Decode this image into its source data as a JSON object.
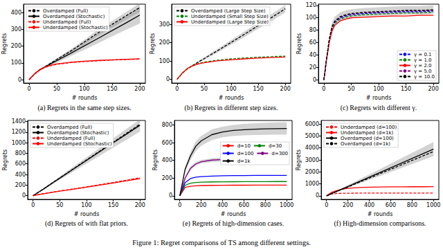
{
  "caption": "Figure 1: Regret comparisons of TS among different settings.",
  "chart_data": [
    {
      "type": "line",
      "title": "(a) Regrets in the same step sizes.",
      "xlabel": "# rounds",
      "ylabel": "Regrets",
      "grid": false,
      "legend": "upper left",
      "xlim": [
        -10,
        210
      ],
      "xticks": [
        0,
        50,
        100,
        150,
        200
      ],
      "ylim": [
        -20,
        450
      ],
      "yticks": [
        0,
        100,
        200,
        300,
        400
      ],
      "x": [
        0,
        10,
        20,
        30,
        40,
        50,
        75,
        100,
        125,
        150,
        175,
        200
      ],
      "series": [
        {
          "name": "Overdamped (Full)",
          "color": "#000000",
          "line_style": "dashed",
          "values": [
            0,
            35,
            60,
            80,
            100,
            120,
            170,
            225,
            280,
            330,
            380,
            430
          ],
          "lower": [
            0,
            33,
            57,
            76,
            95,
            113,
            160,
            211,
            262,
            310,
            357,
            404
          ],
          "upper": [
            0,
            37,
            63,
            84,
            105,
            127,
            180,
            239,
            298,
            350,
            403,
            456
          ]
        },
        {
          "name": "Overdamped (Stochastic)",
          "color": "#000000",
          "line_style": "solid",
          "values": [
            0,
            35,
            60,
            78,
            96,
            113,
            157,
            202,
            247,
            293,
            338,
            385
          ],
          "lower": [
            0,
            32,
            55,
            71,
            87,
            101,
            140,
            179,
            218,
            258,
            297,
            335
          ],
          "upper": [
            0,
            38,
            65,
            85,
            105,
            125,
            174,
            225,
            276,
            328,
            379,
            435
          ]
        },
        {
          "name": "Underdamped (Full)",
          "color": "#ff0000",
          "line_style": "dashed",
          "values": [
            0,
            35,
            60,
            75,
            85,
            92,
            102,
            108,
            113,
            117,
            120,
            123
          ]
        },
        {
          "name": "Underdamped (Stochastic)",
          "color": "#ff0000",
          "line_style": "solid",
          "values": [
            0,
            36,
            62,
            77,
            87,
            94,
            104,
            110,
            115,
            119,
            122,
            125
          ]
        }
      ]
    },
    {
      "type": "line",
      "title": "(b) Regrets in different step sizes.",
      "xlabel": "# rounds",
      "ylabel": "Regrets",
      "grid": false,
      "legend": "upper left",
      "xlim": [
        -10,
        210
      ],
      "xticks": [
        0,
        50,
        100,
        150,
        200
      ],
      "ylim": [
        -20,
        410
      ],
      "yticks": [
        0,
        100,
        200,
        300
      ],
      "x": [
        0,
        10,
        20,
        30,
        40,
        50,
        75,
        100,
        125,
        150,
        175,
        200
      ],
      "series": [
        {
          "name": "Overdamped (Large Step Size)",
          "color": "#000000",
          "line_style": "dashed",
          "values": [
            0,
            35,
            60,
            78,
            96,
            113,
            157,
            202,
            247,
            293,
            338,
            385
          ],
          "lower": [
            0,
            32,
            56,
            73,
            90,
            106,
            147,
            189,
            232,
            276,
            319,
            365
          ],
          "upper": [
            0,
            38,
            64,
            83,
            102,
            120,
            167,
            215,
            262,
            310,
            357,
            405
          ]
        },
        {
          "name": "Underdamped (Small Step Size)",
          "color": "#008000",
          "line_style": "dashed",
          "values": [
            0,
            35,
            60,
            75,
            86,
            94,
            105,
            112,
            117,
            121,
            124,
            127
          ]
        },
        {
          "name": "Underdamped (Large Step Size)",
          "color": "#ff0000",
          "line_style": "solid",
          "values": [
            0,
            36,
            62,
            76,
            85,
            91,
            101,
            107,
            112,
            116,
            119,
            122
          ]
        }
      ]
    },
    {
      "type": "line",
      "title": "(c) Regrets with different γ.",
      "xlabel": "# rounds",
      "ylabel": "Regrets",
      "grid": false,
      "legend": "lower right",
      "xlim": [
        -10,
        210
      ],
      "xticks": [
        0,
        50,
        100,
        150,
        200
      ],
      "ylim": [
        -5,
        122
      ],
      "yticks": [
        0,
        20,
        40,
        60,
        80,
        100,
        120
      ],
      "x": [
        0,
        5,
        10,
        15,
        20,
        30,
        40,
        50,
        75,
        100,
        125,
        150,
        175,
        200
      ],
      "series": [
        {
          "name": "γ = 0.1",
          "color": "#0000ff",
          "line_style": "dashed",
          "values": [
            0,
            35,
            65,
            84,
            93,
            100,
            103,
            105,
            107,
            108,
            109,
            110,
            110,
            111
          ]
        },
        {
          "name": "γ = 1.0",
          "color": "#008000",
          "line_style": "dashed",
          "values": [
            0,
            34,
            63,
            82,
            91,
            98,
            101,
            103,
            105,
            106,
            107,
            108,
            108,
            109
          ]
        },
        {
          "name": "γ = 2.0",
          "color": "#ff0000",
          "line_style": "solid",
          "values": [
            0,
            33,
            61,
            79,
            88,
            95,
            98,
            100,
            101,
            102,
            103,
            103,
            104,
            104
          ]
        },
        {
          "name": "γ = 5.0",
          "color": "#800080",
          "line_style": "dashed",
          "values": [
            0,
            35,
            66,
            85,
            94,
            101,
            104,
            106,
            108,
            109,
            110,
            111,
            111,
            112
          ]
        },
        {
          "name": "γ = 10.0",
          "color": "#000000",
          "line_style": "dashed",
          "values": [
            0,
            35,
            66,
            86,
            95,
            102,
            105,
            107,
            109,
            110,
            111,
            112,
            112,
            113
          ],
          "lower": [
            0,
            31,
            60,
            79,
            88,
            95,
            98,
            100,
            102,
            103,
            104,
            105,
            105,
            106
          ],
          "upper": [
            0,
            39,
            72,
            93,
            102,
            109,
            112,
            114,
            116,
            117,
            118,
            119,
            119,
            120
          ]
        }
      ]
    },
    {
      "type": "line",
      "title": "(d) Regrets of with flat priors.",
      "xlabel": "# rounds",
      "ylabel": "Regrets",
      "grid": false,
      "legend": "upper left",
      "xlim": [
        -10,
        210
      ],
      "xticks": [
        0,
        50,
        100,
        150,
        200
      ],
      "ylim": [
        -70,
        1420
      ],
      "yticks": [
        0,
        200,
        400,
        600,
        800,
        1000,
        1200,
        1400
      ],
      "x": [
        0,
        10,
        20,
        30,
        40,
        50,
        75,
        100,
        125,
        150,
        175,
        200
      ],
      "series": [
        {
          "name": "Overdamped (Full)",
          "color": "#000000",
          "line_style": "dashed",
          "values": [
            0,
            65,
            130,
            200,
            268,
            335,
            505,
            675,
            845,
            1010,
            1180,
            1350
          ]
        },
        {
          "name": "Overdamped (Stochastic)",
          "color": "#000000",
          "line_style": "solid",
          "values": [
            0,
            64,
            128,
            196,
            263,
            330,
            498,
            665,
            832,
            998,
            1163,
            1330
          ],
          "lower": [
            0,
            58,
            116,
            178,
            240,
            300,
            452,
            605,
            757,
            908,
            1058,
            1210
          ],
          "upper": [
            0,
            70,
            140,
            214,
            286,
            360,
            544,
            725,
            905,
            1085,
            1262,
            1440
          ]
        },
        {
          "name": "Underdamped (Full)",
          "color": "#ff0000",
          "line_style": "dashed",
          "values": [
            0,
            20,
            38,
            55,
            72,
            88,
            128,
            168,
            208,
            250,
            292,
            340
          ]
        },
        {
          "name": "Underdamped (Stochastic)",
          "color": "#ff0000",
          "line_style": "solid",
          "values": [
            0,
            19,
            36,
            52,
            68,
            84,
            122,
            160,
            200,
            240,
            280,
            322
          ]
        }
      ]
    },
    {
      "type": "line",
      "title": "(e) Regrets of high-dimension cases.",
      "xlabel": "# rounds",
      "ylabel": "Regrets",
      "grid": false,
      "legend": "right",
      "xlim": [
        -50,
        1050
      ],
      "xticks": [
        0,
        200,
        400,
        600,
        800,
        1000
      ],
      "ylim": [
        -40,
        850
      ],
      "yticks": [
        0,
        200,
        400,
        600,
        800
      ],
      "x": [
        0,
        50,
        100,
        150,
        200,
        300,
        400,
        500,
        600,
        700,
        800,
        900,
        1000
      ],
      "series": [
        {
          "name": "d=10",
          "color": "#ff0000",
          "line_style": "solid",
          "values": [
            0,
            95,
            108,
            113,
            116,
            118,
            119,
            120,
            120,
            121,
            121,
            121,
            121
          ]
        },
        {
          "name": "d=30",
          "color": "#008000",
          "line_style": "solid",
          "values": [
            0,
            120,
            142,
            150,
            154,
            157,
            158,
            159,
            160,
            160,
            160,
            161,
            161
          ]
        },
        {
          "name": "d=100",
          "color": "#0000ff",
          "line_style": "solid",
          "values": [
            0,
            150,
            195,
            210,
            217,
            223,
            226,
            228,
            229,
            230,
            230,
            231,
            231
          ]
        },
        {
          "name": "d=300",
          "color": "#800080",
          "line_style": "solid",
          "values": [
            0,
            200,
            310,
            360,
            385,
            403,
            410,
            414,
            416,
            418,
            419,
            420,
            420
          ],
          "lower": [
            0,
            188,
            290,
            340,
            365,
            381,
            388,
            393,
            395,
            398,
            399,
            400,
            400
          ],
          "upper": [
            0,
            212,
            330,
            380,
            405,
            425,
            432,
            435,
            437,
            438,
            439,
            440,
            440
          ]
        },
        {
          "name": "d=1k",
          "color": "#000000",
          "line_style": "solid",
          "values": [
            0,
            300,
            450,
            560,
            620,
            690,
            720,
            737,
            746,
            752,
            756,
            758,
            760
          ],
          "lower": [
            0,
            270,
            405,
            505,
            565,
            630,
            660,
            675,
            682,
            686,
            688,
            689,
            690
          ],
          "upper": [
            0,
            330,
            495,
            615,
            675,
            750,
            780,
            799,
            810,
            818,
            824,
            828,
            830
          ]
        }
      ]
    },
    {
      "type": "line",
      "title": "(f) High-dimension comparisons.",
      "xlabel": "# rounds",
      "ylabel": "Regrets",
      "grid": false,
      "legend": "upper left",
      "xlim": [
        -50,
        1050
      ],
      "xticks": [
        0,
        200,
        400,
        600,
        800,
        1000
      ],
      "ylim": [
        -300,
        6300
      ],
      "yticks": [
        0,
        1000,
        2000,
        3000,
        4000,
        5000,
        6000
      ],
      "x": [
        0,
        50,
        100,
        150,
        200,
        300,
        400,
        500,
        600,
        700,
        800,
        900,
        1000
      ],
      "series": [
        {
          "name": "Underdamped (d=100)",
          "color": "#ff0000",
          "line_style": "dashed",
          "values": [
            0,
            150,
            195,
            210,
            217,
            223,
            226,
            228,
            229,
            230,
            230,
            231,
            231
          ]
        },
        {
          "name": "Underdamped (d=1k)",
          "color": "#ff0000",
          "line_style": "solid",
          "values": [
            0,
            300,
            450,
            560,
            620,
            690,
            720,
            737,
            746,
            752,
            756,
            758,
            760
          ]
        },
        {
          "name": "Overdamped (d=100)",
          "color": "#000000",
          "line_style": "solid",
          "values": [
            0,
            195,
            390,
            585,
            780,
            1170,
            1560,
            1950,
            2340,
            2730,
            3120,
            3510,
            3900
          ],
          "lower": [
            0,
            170,
            340,
            505,
            670,
            1000,
            1330,
            1660,
            1990,
            2320,
            2650,
            2980,
            3300
          ],
          "upper": [
            0,
            220,
            440,
            665,
            890,
            1340,
            1790,
            2240,
            2690,
            3140,
            3590,
            4040,
            4500
          ]
        },
        {
          "name": "Overdamped (d=1k)",
          "color": "#000000",
          "line_style": "dashed",
          "values": [
            0,
            185,
            370,
            555,
            740,
            1110,
            1480,
            1850,
            2220,
            2590,
            2960,
            3330,
            3700
          ]
        }
      ]
    }
  ]
}
